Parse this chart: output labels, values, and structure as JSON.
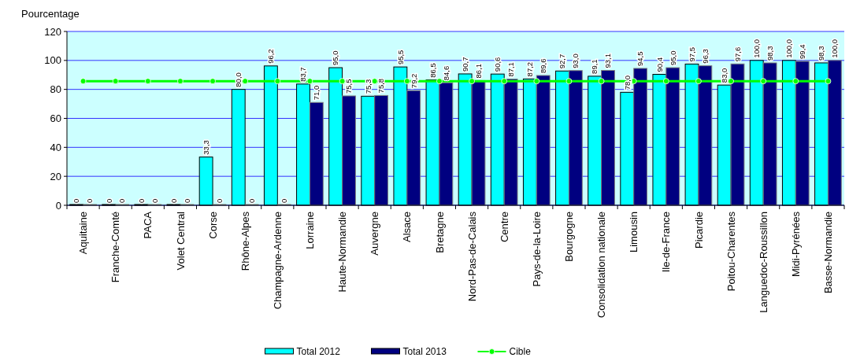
{
  "chart_data": {
    "type": "bar",
    "ylabel": "Pourcentage",
    "categories": [
      "Aquitaine",
      "Franche-Comté",
      "PACA",
      "Volet Central",
      "Corse",
      "Rhône-Alpes",
      "Champagne-Ardenne",
      "Lorraine",
      "Haute-Normandie",
      "Auvergne",
      "Alsace",
      "Bretagne",
      "Nord-Pas-de-Calais",
      "Centre",
      "Pays-de-la-Loire",
      "Bourgogne",
      "Consolidation nationale",
      "Limousin",
      "Ile-de-France",
      "Picardie",
      "Poitou-Charentes",
      "Languedoc-Roussillon",
      "Midi-Pyrénées",
      "Basse-Normandie"
    ],
    "series": [
      {
        "name": "Total 2012",
        "color": "#00ffff",
        "values": [
          0,
          0,
          0,
          0,
          33.3,
          80.0,
          96.2,
          83.7,
          95.0,
          75.3,
          95.5,
          86.5,
          90.7,
          90.6,
          87.2,
          92.7,
          89.1,
          78.0,
          90.4,
          97.5,
          83.0,
          100.0,
          100.0,
          98.3
        ],
        "value_labels": [
          "0",
          "0",
          "0",
          "0",
          "33,3",
          "80,0",
          "96,2",
          "83,7",
          "95,0",
          "75,3",
          "95,5",
          "86,5",
          "90,7",
          "90,6",
          "87,2",
          "92,7",
          "89,1",
          "78,0",
          "90,4",
          "97,5",
          "83,0",
          "100,0",
          "100,0",
          "98,3"
        ]
      },
      {
        "name": "Total 2013",
        "color": "#000080",
        "values": [
          0,
          0,
          0,
          0,
          0,
          0,
          0,
          71.0,
          75.5,
          75.8,
          79.2,
          84.6,
          86.1,
          87.1,
          89.6,
          93.0,
          93.1,
          94.5,
          95.0,
          96.3,
          97.6,
          98.3,
          99.4,
          100.0
        ],
        "value_labels": [
          "0",
          "0",
          "0",
          "0",
          "0",
          "0",
          "0",
          "71,0",
          "75,5",
          "75,8",
          "79,2",
          "84,6",
          "86,1",
          "87,1",
          "89,6",
          "93,0",
          "93,1",
          "94,5",
          "95,0",
          "96,3",
          "97,6",
          "98,3",
          "99,4",
          "100,0"
        ]
      },
      {
        "name": "Cible",
        "type": "line",
        "color": "#00ff00",
        "values": [
          85.7,
          85.7,
          85.7,
          85.7,
          85.7,
          85.7,
          85.7,
          85.7,
          85.7,
          85.7,
          85.7,
          85.7,
          85.7,
          85.7,
          85.7,
          85.7,
          85.7,
          85.7,
          85.7,
          85.7,
          85.7,
          85.7,
          85.7,
          85.7
        ]
      }
    ],
    "ylim": [
      0,
      120
    ],
    "yticks": [
      0,
      20,
      40,
      60,
      80,
      100,
      120
    ],
    "grid": "y",
    "legend": "bottom",
    "marker": "circle",
    "line_style": "solid"
  }
}
